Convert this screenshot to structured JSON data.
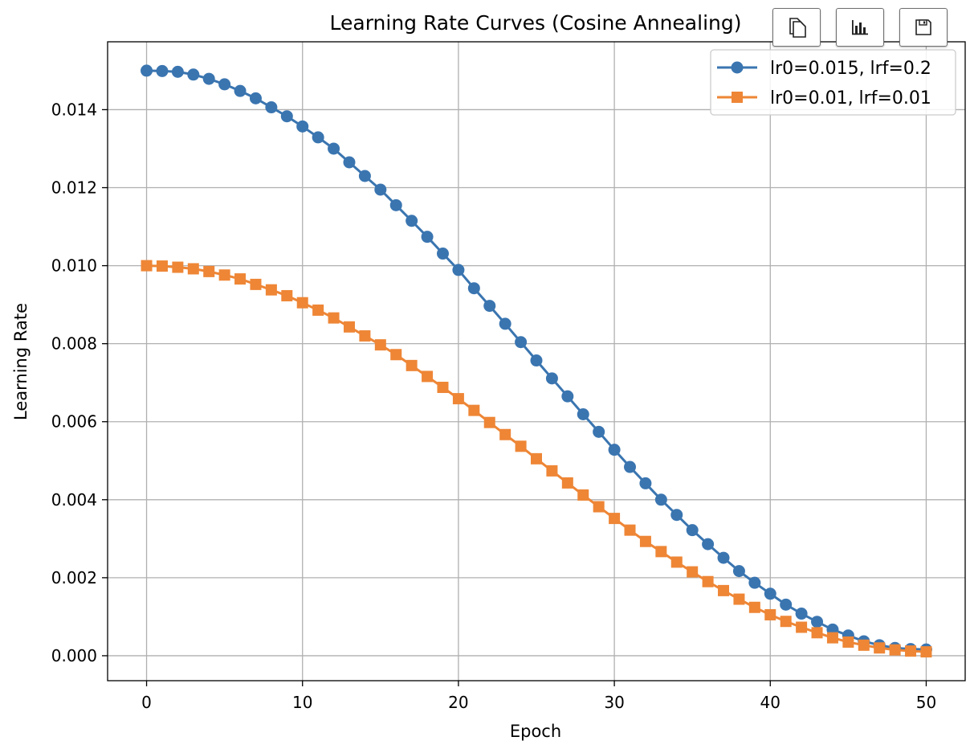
{
  "toolbar": {
    "buttons": [
      {
        "icon": "copy-icon"
      },
      {
        "icon": "bar-chart-icon"
      },
      {
        "icon": "save-icon"
      }
    ]
  },
  "chart_data": {
    "type": "line",
    "title": "Learning Rate Curves (Cosine Annealing)",
    "xlabel": "Epoch",
    "ylabel": "Learning Rate",
    "xlim": [
      -2.5,
      52.5
    ],
    "ylim": [
      -0.00064,
      0.01574
    ],
    "x_ticks": [
      0,
      10,
      20,
      30,
      40,
      50
    ],
    "x_tick_labels": [
      "0",
      "10",
      "20",
      "30",
      "40",
      "50"
    ],
    "y_ticks": [
      0.0,
      0.002,
      0.004,
      0.006,
      0.008,
      0.01,
      0.012,
      0.014
    ],
    "y_tick_labels": [
      "0.000",
      "0.002",
      "0.004",
      "0.006",
      "0.008",
      "0.010",
      "0.012",
      "0.014"
    ],
    "grid": true,
    "legend_position": "top-right",
    "x": [
      0,
      1,
      2,
      3,
      4,
      5,
      6,
      7,
      8,
      9,
      10,
      11,
      12,
      13,
      14,
      15,
      16,
      17,
      18,
      19,
      20,
      21,
      22,
      23,
      24,
      25,
      26,
      27,
      28,
      29,
      30,
      31,
      32,
      33,
      34,
      35,
      36,
      37,
      38,
      39,
      40,
      41,
      42,
      43,
      44,
      45,
      46,
      47,
      48,
      49,
      50
    ],
    "series": [
      {
        "name": "lr0=0.015, lrf=0.2",
        "color": "#3a75b0",
        "marker": "circle",
        "values": [
          0.015,
          0.01499,
          0.01497,
          0.0149,
          0.01479,
          0.01465,
          0.01448,
          0.01429,
          0.01406,
          0.01383,
          0.01357,
          0.01329,
          0.013,
          0.01265,
          0.0123,
          0.01195,
          0.01155,
          0.01115,
          0.01074,
          0.01031,
          0.00989,
          0.00942,
          0.00897,
          0.00851,
          0.00804,
          0.00757,
          0.00711,
          0.00665,
          0.00619,
          0.00574,
          0.00528,
          0.00484,
          0.00442,
          0.004,
          0.00361,
          0.00322,
          0.00286,
          0.00251,
          0.00217,
          0.00187,
          0.00159,
          0.00131,
          0.00108,
          0.00087,
          0.00067,
          0.00052,
          0.00037,
          0.00027,
          0.0002,
          0.00017,
          0.00016
        ]
      },
      {
        "name": "lr0=0.01, lrf=0.01",
        "color": "#ee8636",
        "marker": "square",
        "values": [
          0.01,
          0.00999,
          0.00996,
          0.00992,
          0.00985,
          0.00976,
          0.00966,
          0.00952,
          0.00938,
          0.00923,
          0.00905,
          0.00886,
          0.00866,
          0.00843,
          0.0082,
          0.00797,
          0.00772,
          0.00744,
          0.00716,
          0.00688,
          0.00659,
          0.00629,
          0.00598,
          0.00567,
          0.00537,
          0.00505,
          0.00474,
          0.00443,
          0.00412,
          0.00382,
          0.00352,
          0.00322,
          0.00293,
          0.00267,
          0.0024,
          0.00215,
          0.0019,
          0.00167,
          0.00145,
          0.00124,
          0.00105,
          0.00088,
          0.00073,
          0.00059,
          0.00046,
          0.00035,
          0.00027,
          0.0002,
          0.00015,
          0.00012,
          0.0001
        ]
      }
    ]
  }
}
